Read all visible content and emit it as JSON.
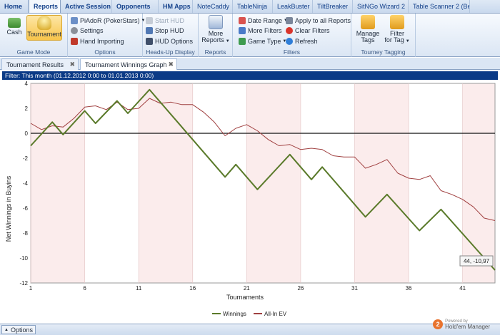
{
  "ribbon_tabs": [
    "Home",
    "Reports",
    "Active Session",
    "Opponents",
    "HM Apps",
    "NoteCaddy",
    "TableNinja",
    "LeakBuster",
    "TiltBreaker",
    "SitNGo Wizard 2",
    "Table Scanner 2 (Be"
  ],
  "game_mode": {
    "caption": "Game Mode",
    "cash": "Cash",
    "tournament": "Tournament"
  },
  "options": {
    "caption": "Options",
    "player": "PiAdoR (PokerStars)",
    "settings": "Settings",
    "hand_importing": "Hand Importing"
  },
  "hud": {
    "caption": "Heads-Up Display",
    "start": "Start HUD",
    "stop": "Stop HUD",
    "options": "HUD Options"
  },
  "reports": {
    "caption": "Reports",
    "more_line1": "More",
    "more_line2": "Reports"
  },
  "filters": {
    "caption": "Filters",
    "date_range": "Date Range",
    "more_filters": "More Filters",
    "game_type": "Game Type",
    "apply_all": "Apply to all Reports",
    "clear": "Clear Filters",
    "refresh": "Refresh"
  },
  "tagging": {
    "caption": "Tourney Tagging",
    "manage_line1": "Manage",
    "manage_line2": "Tags",
    "filter_line1": "Filter",
    "filter_line2": "for Tag"
  },
  "doc_tabs": [
    "Tournament Results",
    "Tournament Winnings Graph"
  ],
  "filter_bar": "Filter: This month (01.12.2012 0:00 to 01.01.2013 0:00)",
  "tooltip": "44, -10,97",
  "bottom": {
    "options": "Options",
    "powered_by": "Powered by",
    "brand": "Hold'em Manager",
    "logo": "2"
  },
  "colors": {
    "winnings": "#5a7a2a",
    "allin": "#a04040",
    "band": "#fbecec"
  },
  "chart_data": {
    "type": "line",
    "xlabel": "Tournaments",
    "ylabel": "Net Winnings in Buyins",
    "xlim": [
      1,
      44
    ],
    "ylim": [
      -12,
      4
    ],
    "xticks": [
      1,
      6,
      11,
      16,
      21,
      26,
      31,
      36,
      41
    ],
    "yticks": [
      4,
      2,
      0,
      -2,
      -4,
      -6,
      -8,
      -10,
      -12
    ],
    "series": [
      {
        "name": "Winnings",
        "values": [
          [
            1,
            -1
          ],
          [
            3,
            0.9
          ],
          [
            4,
            -0.1
          ],
          [
            6,
            1.8
          ],
          [
            7,
            0.8
          ],
          [
            9,
            2.6
          ],
          [
            10,
            1.6
          ],
          [
            12,
            3.5
          ],
          [
            19,
            -3.5
          ],
          [
            20,
            -2.5
          ],
          [
            22,
            -4.5
          ],
          [
            25,
            -1.7
          ],
          [
            27,
            -3.7
          ],
          [
            28,
            -2.7
          ],
          [
            30,
            -4.7
          ],
          [
            32,
            -6.7
          ],
          [
            34,
            -4.9
          ],
          [
            37,
            -7.8
          ],
          [
            39,
            -6.1
          ],
          [
            44,
            -10.97
          ]
        ]
      },
      {
        "name": "All-In EV",
        "values": [
          [
            1,
            0.8
          ],
          [
            2,
            0.3
          ],
          [
            3,
            0.6
          ],
          [
            4,
            0.5
          ],
          [
            5,
            1.2
          ],
          [
            6,
            2.1
          ],
          [
            7,
            2.2
          ],
          [
            8,
            1.9
          ],
          [
            9,
            2.5
          ],
          [
            10,
            1.9
          ],
          [
            11,
            2.0
          ],
          [
            12,
            2.8
          ],
          [
            13,
            2.4
          ],
          [
            14,
            2.5
          ],
          [
            15,
            2.3
          ],
          [
            16,
            2.3
          ],
          [
            17,
            1.7
          ],
          [
            18,
            0.9
          ],
          [
            19,
            -0.2
          ],
          [
            20,
            0.4
          ],
          [
            21,
            0.7
          ],
          [
            22,
            0.2
          ],
          [
            23,
            -0.5
          ],
          [
            24,
            -1.0
          ],
          [
            25,
            -0.9
          ],
          [
            26,
            -1.3
          ],
          [
            27,
            -1.2
          ],
          [
            28,
            -1.3
          ],
          [
            29,
            -1.8
          ],
          [
            30,
            -1.9
          ],
          [
            31,
            -1.9
          ],
          [
            32,
            -2.8
          ],
          [
            33,
            -2.5
          ],
          [
            34,
            -2.1
          ],
          [
            35,
            -3.2
          ],
          [
            36,
            -3.6
          ],
          [
            37,
            -3.7
          ],
          [
            38,
            -3.4
          ],
          [
            39,
            -4.6
          ],
          [
            40,
            -4.9
          ],
          [
            41,
            -5.3
          ],
          [
            42,
            -5.9
          ],
          [
            43,
            -6.8
          ],
          [
            44,
            -7.0
          ]
        ]
      }
    ]
  }
}
